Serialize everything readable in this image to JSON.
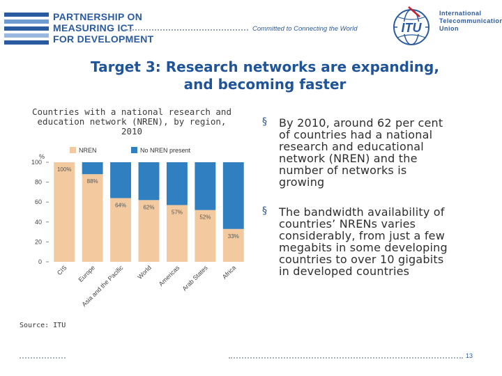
{
  "header": {
    "logo_lines": [
      "PARTNERSHIP ON",
      "MEASURING ICT",
      "FOR DEVELOPMENT"
    ],
    "tagline": "Committed to Connecting the World",
    "itu_lines": [
      "International",
      "Telecommunication",
      "Union"
    ],
    "itu_emblem_text": "ITU"
  },
  "title": {
    "line1": "Target 3: Research networks are expanding,",
    "line2": "and becoming faster"
  },
  "chart_title": {
    "line1": "Countries with a national research and",
    "line2": "education network (NREN), by region,",
    "line3": "2010"
  },
  "chart_data": {
    "type": "bar",
    "stacked": true,
    "title": "Countries with a national research and education network (NREN), by region, 2010",
    "ylabel": "%",
    "ylim": [
      0,
      100
    ],
    "yticks": [
      0,
      20,
      40,
      60,
      80,
      100
    ],
    "categories": [
      "CIS",
      "Europe",
      "Asia and the Pacific",
      "World",
      "Americas",
      "Arab States",
      "Africa"
    ],
    "series": [
      {
        "name": "NREN",
        "color": "#f3ca9f",
        "values": [
          100,
          88,
          64,
          62,
          57,
          52,
          33
        ]
      },
      {
        "name": "No NREN present",
        "color": "#2f7fc1",
        "values": [
          0,
          12,
          36,
          38,
          43,
          48,
          67
        ]
      }
    ],
    "data_labels": [
      "100%",
      "88%",
      "64%",
      "62%",
      "57%",
      "52%",
      "33%"
    ],
    "legend": "top"
  },
  "source": "Source: ITU",
  "bullets": [
    [
      "By 2010, around 62 per cent",
      "of countries had a national",
      "research and educational",
      "network (NREN) and the",
      "number of networks is",
      "growing"
    ],
    [
      "The bandwidth availability of",
      "countries’ NRENs varies",
      "considerably, from just a few",
      "megabits in some developing",
      "countries to over 10 gigabits",
      "in developed countries"
    ]
  ],
  "bullet_symbol": "§",
  "page_number": "13"
}
